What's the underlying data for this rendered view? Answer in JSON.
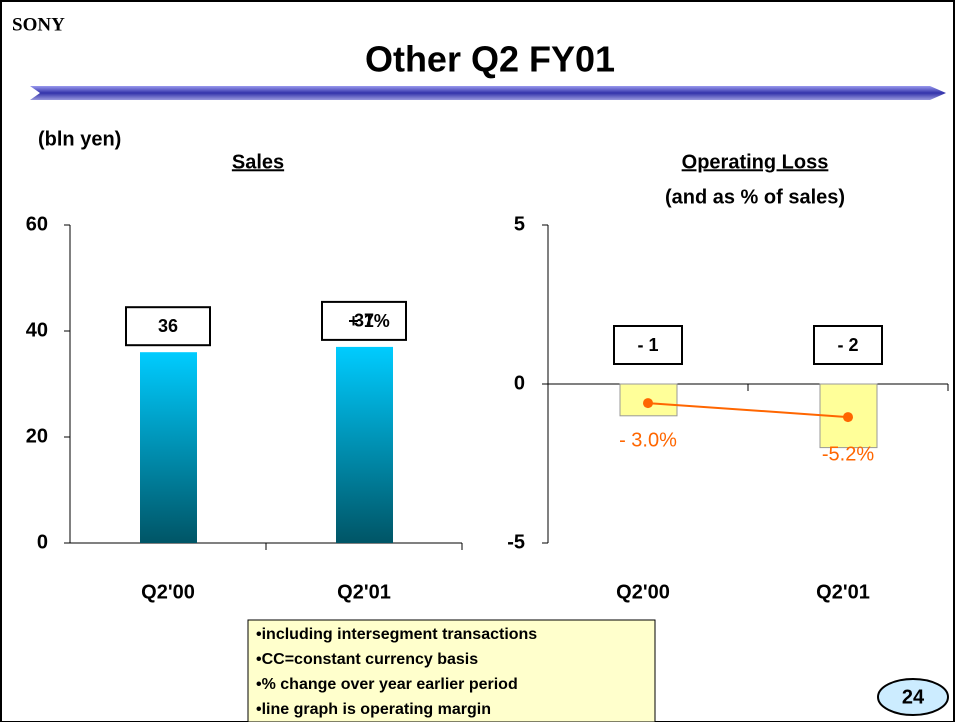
{
  "brand": "SONY",
  "title": "Other Q2 FY01",
  "unit": "(bln yen)",
  "notes": [
    "•including intersegment transactions",
    "•CC=constant currency basis",
    "•% change over year earlier period",
    "•line graph is operating margin"
  ],
  "page_number": "24",
  "chart_data": [
    {
      "type": "bar",
      "title": "Sales",
      "categories": [
        "Q2'00",
        "Q2'01"
      ],
      "values": [
        36,
        37
      ],
      "annotations": [
        "+ 1%"
      ],
      "color": "#00ccff",
      "ylim": [
        0,
        60
      ],
      "yticks": [
        0,
        20,
        40,
        60
      ]
    },
    {
      "type": "bar",
      "title": "Operating Loss",
      "subtitle": "(and as % of sales)",
      "categories": [
        "Q2'00",
        "Q2'01"
      ],
      "values": [
        -1,
        -2
      ],
      "value_labels": [
        "- 1",
        "- 2"
      ],
      "color": "#ffff99",
      "ylim": [
        -5,
        5
      ],
      "yticks": [
        -5,
        0,
        5
      ],
      "line": {
        "values": [
          -3.0,
          -5.2
        ],
        "value_labels": [
          "- 3.0%",
          "-5.2%"
        ],
        "color": "#ff6600",
        "axis": "y2"
      },
      "y2lim": [
        -25,
        25
      ]
    }
  ]
}
